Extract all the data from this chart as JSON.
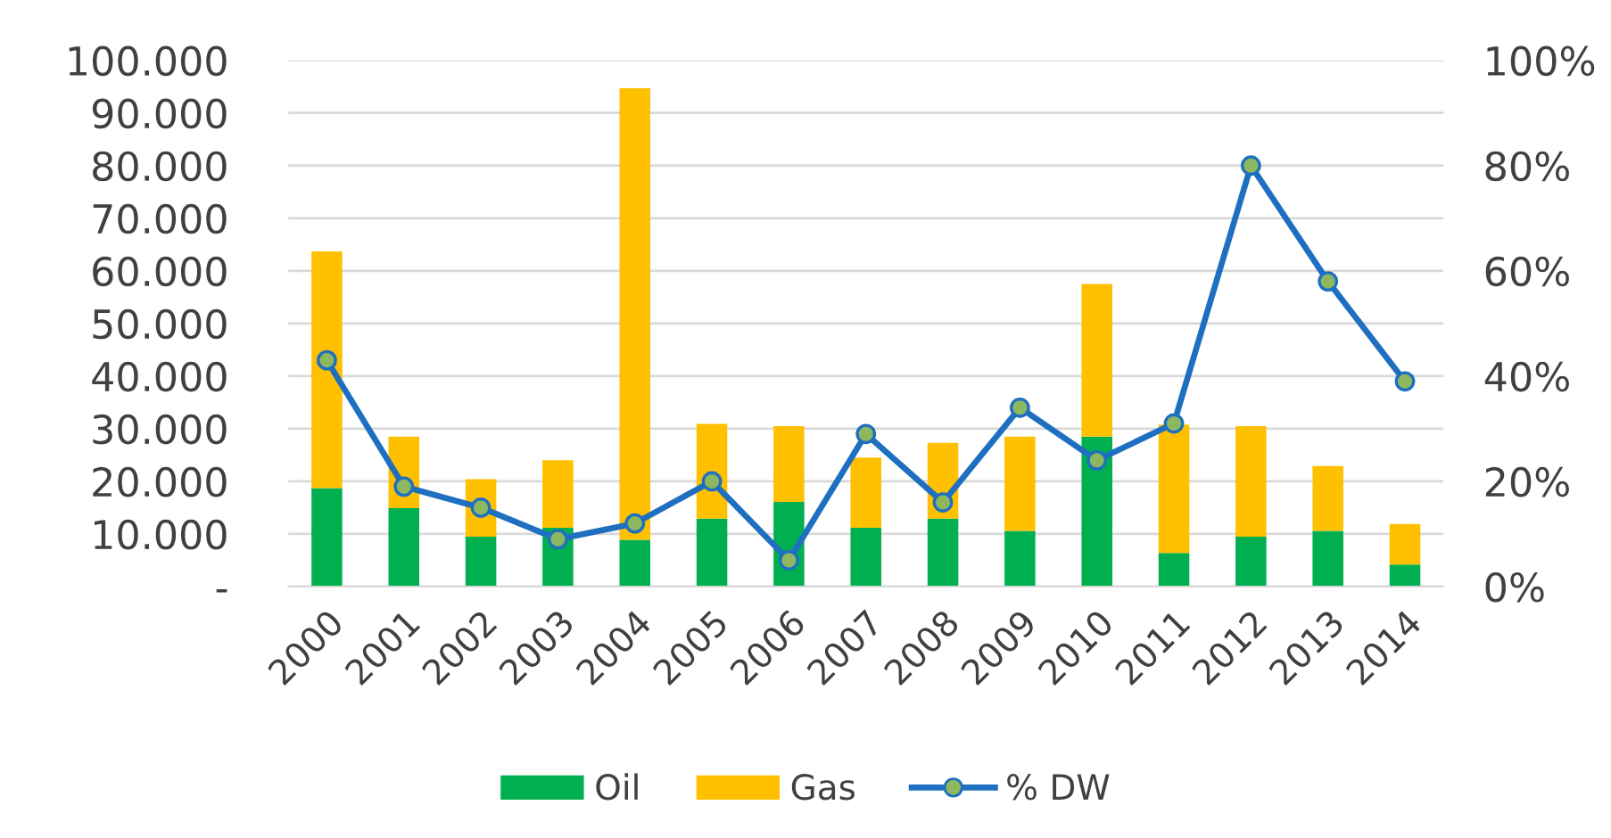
{
  "chart_data": {
    "type": "bar",
    "stacked": true,
    "categories": [
      "2000",
      "2001",
      "2002",
      "2003",
      "2004",
      "2005",
      "2006",
      "2007",
      "2008",
      "2009",
      "2010",
      "2011",
      "2012",
      "2013",
      "2014"
    ],
    "series": [
      {
        "name": "Oil",
        "color": "#00b050",
        "values": [
          18700,
          14900,
          9500,
          11200,
          8900,
          12900,
          16100,
          11200,
          12900,
          10600,
          28500,
          6400,
          9500,
          10600,
          4200
        ]
      },
      {
        "name": "Gas",
        "color": "#ffc000",
        "values": [
          45000,
          13600,
          10900,
          12800,
          85800,
          18000,
          14400,
          13300,
          14400,
          17900,
          29000,
          24400,
          21000,
          12300,
          7700
        ]
      },
      {
        "name": "% DW",
        "type": "line",
        "axis": "y2",
        "color": "#1f6fc0",
        "values": [
          43,
          19,
          15,
          9,
          12,
          20,
          5,
          29,
          16,
          34,
          24,
          31,
          80,
          58,
          39
        ]
      }
    ],
    "ylim": [
      0,
      100000
    ],
    "yticks": [
      {
        "value": 0,
        "label": "-"
      },
      {
        "value": 10000,
        "label": "10.000"
      },
      {
        "value": 20000,
        "label": "20.000"
      },
      {
        "value": 30000,
        "label": "30.000"
      },
      {
        "value": 40000,
        "label": "40.000"
      },
      {
        "value": 50000,
        "label": "50.000"
      },
      {
        "value": 60000,
        "label": "60.000"
      },
      {
        "value": 70000,
        "label": "70.000"
      },
      {
        "value": 80000,
        "label": "80.000"
      },
      {
        "value": 90000,
        "label": "90.000"
      },
      {
        "value": 100000,
        "label": "100.000"
      }
    ],
    "y2lim": [
      0,
      100
    ],
    "y2ticks": [
      {
        "value": 0,
        "label": "0%"
      },
      {
        "value": 20,
        "label": "20%"
      },
      {
        "value": 40,
        "label": "40%"
      },
      {
        "value": 60,
        "label": "60%"
      },
      {
        "value": 80,
        "label": "80%"
      },
      {
        "value": 100,
        "label": "100%"
      }
    ],
    "grid": "y",
    "legend": "bottom",
    "marker": "circle",
    "line_style": "solid"
  }
}
